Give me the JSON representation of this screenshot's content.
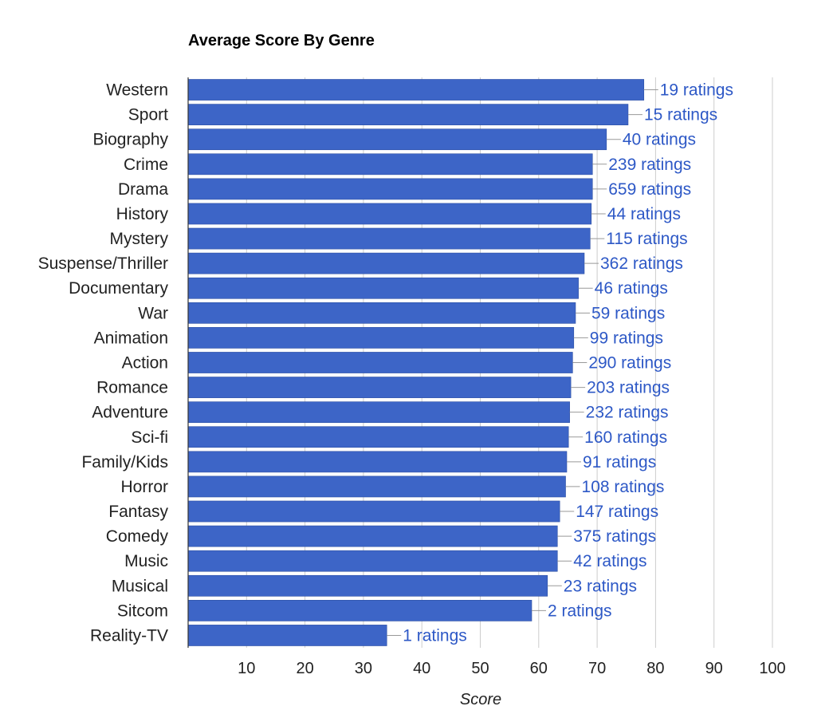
{
  "chart_data": {
    "type": "bar",
    "orientation": "horizontal",
    "title": "Average Score By Genre",
    "xlabel": "Score",
    "ylabel": "",
    "xlim": [
      0,
      100
    ],
    "ticks": [
      10,
      20,
      30,
      40,
      50,
      60,
      70,
      80,
      90,
      100
    ],
    "grid": true,
    "bar_color": "#3d65c7",
    "label_color": "#2d58c6",
    "categories": [
      "Western",
      "Sport",
      "Biography",
      "Crime",
      "Drama",
      "History",
      "Mystery",
      "Suspense/Thriller",
      "Documentary",
      "War",
      "Animation",
      "Action",
      "Romance",
      "Adventure",
      "Sci-fi",
      "Family/Kids",
      "Horror",
      "Fantasy",
      "Comedy",
      "Music",
      "Musical",
      "Sitcom",
      "Reality-TV"
    ],
    "values": [
      78.0,
      75.3,
      71.6,
      69.2,
      69.2,
      69.0,
      68.8,
      67.8,
      66.8,
      66.3,
      66.0,
      65.8,
      65.5,
      65.3,
      65.1,
      64.8,
      64.6,
      63.6,
      63.2,
      63.2,
      61.5,
      58.8,
      34.0
    ],
    "data_labels": [
      "19 ratings",
      "15 ratings",
      "40 ratings",
      "239 ratings",
      "659 ratings",
      "44 ratings",
      "115 ratings",
      "362 ratings",
      "46 ratings",
      "59 ratings",
      "99 ratings",
      "290 ratings",
      "203 ratings",
      "232 ratings",
      "160 ratings",
      "91 ratings",
      "108 ratings",
      "147 ratings",
      "375 ratings",
      "42 ratings",
      "23 ratings",
      "2 ratings",
      "1 ratings"
    ]
  }
}
